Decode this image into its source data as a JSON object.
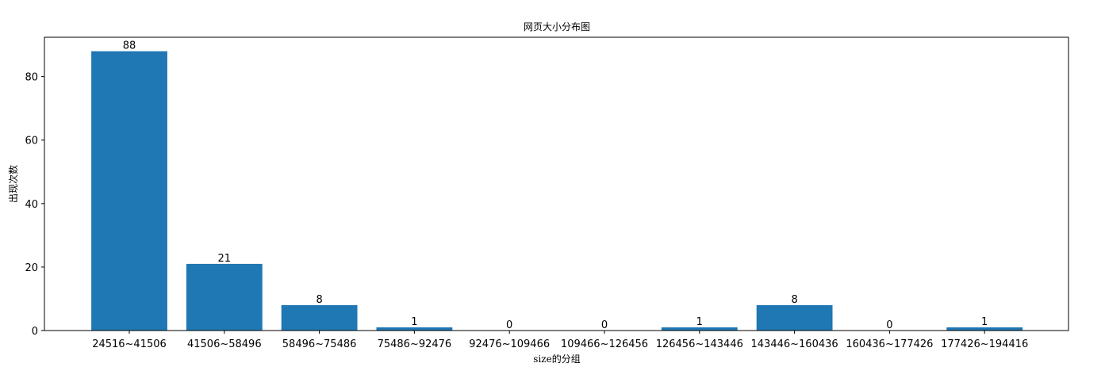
{
  "chart_data": {
    "type": "bar",
    "title": "网页大小分布图",
    "xlabel": "size的分组",
    "ylabel": "出现次数",
    "categories": [
      "24516~41506",
      "41506~58496",
      "58496~75486",
      "75486~92476",
      "92476~109466",
      "109466~126456",
      "126456~143446",
      "143446~160436",
      "160436~177426",
      "177426~194416"
    ],
    "values": [
      88,
      21,
      8,
      1,
      0,
      0,
      1,
      8,
      0,
      1
    ],
    "ylim": [
      0,
      92.4
    ],
    "yticks": [
      0,
      20,
      40,
      60,
      80
    ],
    "grid": false,
    "bar_color": "#1f77b4"
  }
}
